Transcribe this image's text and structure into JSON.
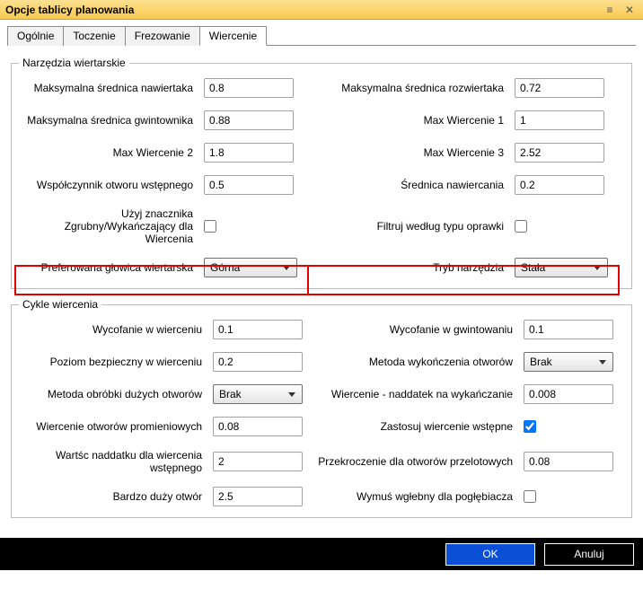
{
  "window": {
    "title": "Opcje tablicy planowania",
    "close_glyph": "✕",
    "drag_glyph": "≡"
  },
  "tabs": [
    {
      "label": "Ogólnie"
    },
    {
      "label": "Toczenie"
    },
    {
      "label": "Frezowanie"
    },
    {
      "label": "Wiercenie"
    }
  ],
  "active_tab": 3,
  "group_tools": {
    "legend": "Narzędzia wiertarskie",
    "fields": {
      "max_center_drill": {
        "label": "Maksymalna średnica nawiertaka",
        "value": "0.8"
      },
      "max_reamer": {
        "label": "Maksymalna średnica rozwiertaka",
        "value": "0.72"
      },
      "max_tap": {
        "label": "Maksymalna średnica gwintownika",
        "value": "0.88"
      },
      "max_drill_1": {
        "label": "Max Wiercenie 1",
        "value": "1"
      },
      "max_drill_2": {
        "label": "Max Wiercenie 2",
        "value": "1.8"
      },
      "max_drill_3": {
        "label": "Max Wiercenie 3",
        "value": "2.52"
      },
      "pilot_ratio": {
        "label": "Współczynnik otworu wstępnego",
        "value": "0.5"
      },
      "center_diam": {
        "label": "Średnica nawiercania",
        "value": "0.2"
      },
      "rough_finish_tag": {
        "label": "Użyj znacznika Zgrubny/Wykańczający dla Wiercenia",
        "checked": false
      },
      "filter_holder": {
        "label": "Filtruj według typu oprawki",
        "checked": false
      },
      "pref_head": {
        "label": "Preferowana głowica wiertarska",
        "value": "Górna"
      },
      "tool_mode": {
        "label": "Tryb narzędzia",
        "value": "Stała"
      }
    }
  },
  "group_cycles": {
    "legend": "Cykle wiercenia",
    "fields": {
      "drill_retract": {
        "label": "Wycofanie w wierceniu",
        "value": "0.1"
      },
      "tap_retract": {
        "label": "Wycofanie w gwintowaniu",
        "value": "0.1"
      },
      "drill_clear": {
        "label": "Poziom bezpieczny w wierceniu",
        "value": "0.2"
      },
      "finish_method": {
        "label": "Metoda wykończenia otworów",
        "value": "Brak"
      },
      "large_method": {
        "label": "Metoda obróbki dużych otworów",
        "value": "Brak"
      },
      "finish_allow": {
        "label": "Wiercenie - naddatek na wykańczanie",
        "value": "0.008"
      },
      "radial_drill": {
        "label": "Wiercenie otworów promieniowych",
        "value": "0.08"
      },
      "apply_predrill": {
        "label": "Zastosuj wiercenie wstępne",
        "checked": true
      },
      "pilot_stock": {
        "label": "Wartśc naddatku dla wiercenia wstępnego",
        "value": "2"
      },
      "through_overrun": {
        "label": "Przekroczenie dla otworów przelotowych",
        "value": "0.08"
      },
      "very_large": {
        "label": "Bardzo duży otwór",
        "value": "2.5"
      },
      "force_depth": {
        "label": "Wymuś wgłebny dla pogłębiacza",
        "checked": false
      }
    }
  },
  "buttons": {
    "ok": "OK",
    "cancel": "Anuluj"
  }
}
